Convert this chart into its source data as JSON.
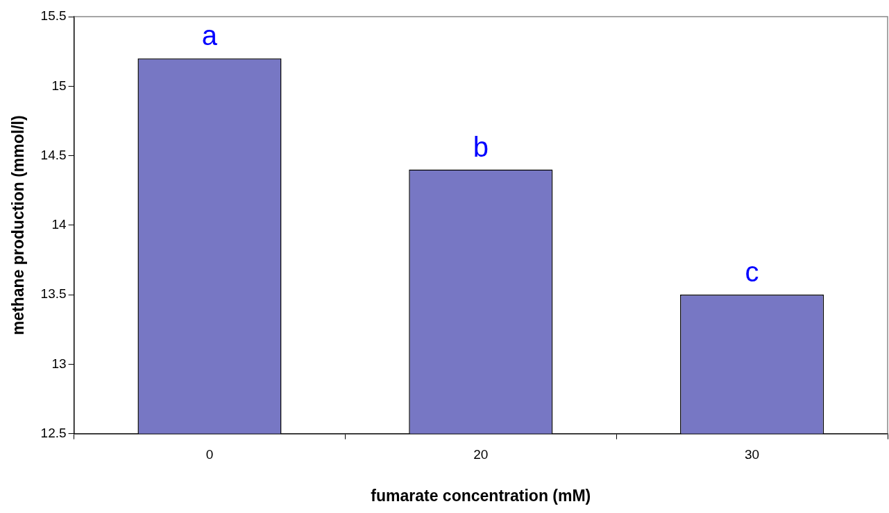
{
  "chart_data": {
    "type": "bar",
    "xlabel": "fumarate concentration (mM)",
    "ylabel": "methane production (mmol/l)",
    "categories": [
      "0",
      "20",
      "30"
    ],
    "values": [
      15.2,
      14.4,
      13.5
    ],
    "color": "#7777c4",
    "ylim": [
      12.5,
      15.5
    ],
    "yticks": [
      12.5,
      13,
      13.5,
      14,
      14.5,
      15,
      15.5
    ],
    "grid": false,
    "legend": false,
    "annotations": [
      {
        "text": "a",
        "x": "0",
        "y": 15.2
      },
      {
        "text": "b",
        "x": "20",
        "y": 14.4
      },
      {
        "text": "c",
        "x": "30",
        "y": 13.5
      }
    ]
  }
}
